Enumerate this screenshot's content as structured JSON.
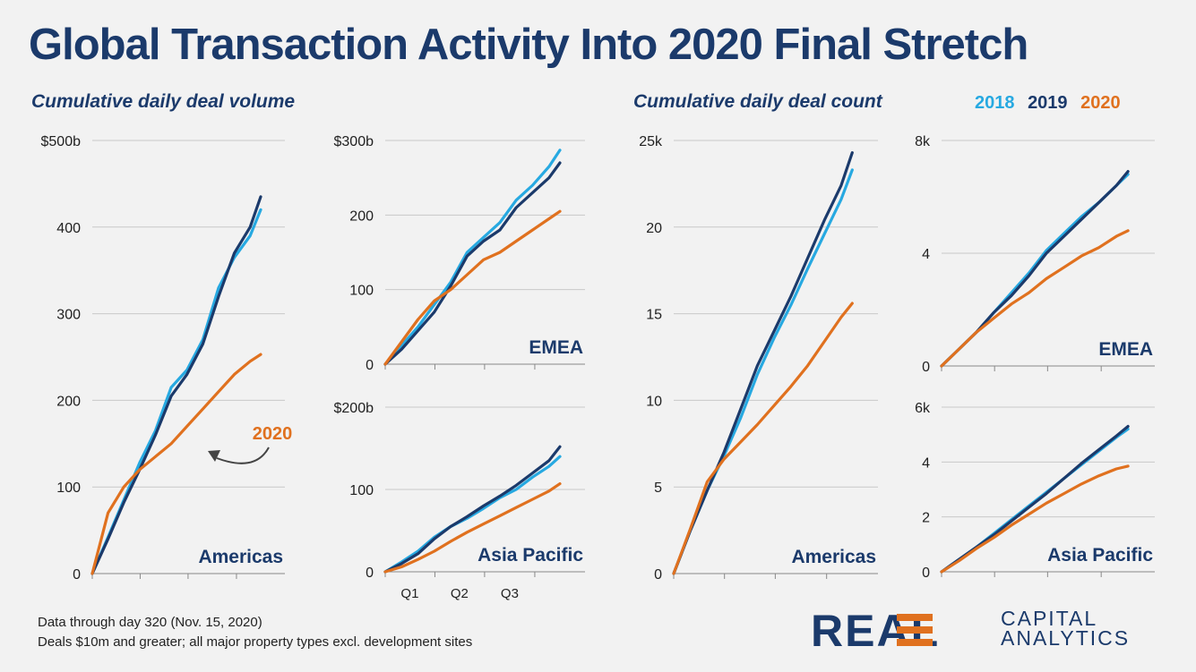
{
  "title": "Global Transaction Activity Into 2020 Final Stretch",
  "subtitle_left": "Cumulative daily deal volume",
  "subtitle_right": "Cumulative daily deal count",
  "legend": [
    {
      "name": "2018",
      "color": "#27a9e1"
    },
    {
      "name": "2019",
      "color": "#1b3a6b"
    },
    {
      "name": "2020",
      "color": "#e0711f"
    }
  ],
  "footnote_line1": "Data through day 320 (Nov. 15, 2020)",
  "footnote_line2": "Deals $10m and greater; all major property types excl. development sites",
  "logo": {
    "word": "REAL",
    "line1": "CAPITAL",
    "line2": "ANALYTICS"
  },
  "chart_data": [
    {
      "type": "line",
      "label": "Americas",
      "metric": "Cumulative daily deal volume",
      "ylim": [
        0,
        500
      ],
      "yticks": [
        "$500b",
        "400",
        "300",
        "200",
        "100",
        "0"
      ],
      "x": [
        0,
        30,
        60,
        90,
        120,
        150,
        180,
        210,
        240,
        270,
        300,
        320
      ],
      "annotation": "2020",
      "series": [
        {
          "name": "2018",
          "values": [
            0,
            42,
            85,
            128,
            165,
            215,
            235,
            270,
            330,
            365,
            390,
            420
          ]
        },
        {
          "name": "2019",
          "values": [
            0,
            40,
            82,
            120,
            160,
            205,
            230,
            265,
            320,
            370,
            400,
            435
          ]
        },
        {
          "name": "2020",
          "values": [
            0,
            70,
            100,
            120,
            135,
            150,
            170,
            190,
            210,
            230,
            245,
            253
          ]
        }
      ]
    },
    {
      "type": "line",
      "label": "EMEA",
      "metric": "Cumulative daily deal volume",
      "ylim": [
        0,
        300
      ],
      "yticks": [
        "$300b",
        "200",
        "100",
        "0"
      ],
      "x": [
        0,
        30,
        60,
        90,
        120,
        150,
        180,
        210,
        240,
        270,
        300,
        320
      ],
      "series": [
        {
          "name": "2018",
          "values": [
            0,
            25,
            50,
            80,
            110,
            150,
            170,
            190,
            220,
            240,
            265,
            287
          ]
        },
        {
          "name": "2019",
          "values": [
            0,
            20,
            45,
            70,
            105,
            145,
            165,
            180,
            210,
            230,
            250,
            270
          ]
        },
        {
          "name": "2020",
          "values": [
            0,
            30,
            60,
            85,
            100,
            120,
            140,
            150,
            165,
            180,
            195,
            205
          ]
        }
      ]
    },
    {
      "type": "line",
      "label": "Asia Pacific",
      "metric": "Cumulative daily deal volume",
      "ylim": [
        0,
        200
      ],
      "yticks": [
        "$200b",
        "100",
        "0"
      ],
      "xticklabels": [
        "Q1",
        "Q2",
        "Q3"
      ],
      "x": [
        0,
        30,
        60,
        90,
        120,
        150,
        180,
        210,
        240,
        270,
        300,
        320
      ],
      "series": [
        {
          "name": "2018",
          "values": [
            0,
            12,
            25,
            42,
            55,
            65,
            77,
            90,
            100,
            115,
            128,
            140
          ]
        },
        {
          "name": "2019",
          "values": [
            0,
            10,
            22,
            40,
            55,
            67,
            80,
            92,
            105,
            120,
            135,
            152
          ]
        },
        {
          "name": "2020",
          "values": [
            0,
            6,
            15,
            25,
            37,
            48,
            58,
            68,
            78,
            88,
            98,
            107
          ]
        }
      ]
    },
    {
      "type": "line",
      "label": "Americas",
      "metric": "Cumulative daily deal count",
      "ylim": [
        0,
        25
      ],
      "yticks": [
        "25k",
        "20",
        "15",
        "10",
        "5",
        "0"
      ],
      "x": [
        0,
        30,
        60,
        90,
        120,
        150,
        180,
        210,
        240,
        270,
        300,
        320
      ],
      "series": [
        {
          "name": "2018",
          "values": [
            0,
            2.5,
            4.8,
            6.8,
            9.0,
            11.5,
            13.6,
            15.5,
            17.6,
            19.6,
            21.6,
            23.3
          ]
        },
        {
          "name": "2019",
          "values": [
            0,
            2.5,
            4.8,
            7.0,
            9.5,
            12.0,
            14.0,
            16.0,
            18.2,
            20.4,
            22.4,
            24.3
          ]
        },
        {
          "name": "2020",
          "values": [
            0,
            2.6,
            5.3,
            6.6,
            7.6,
            8.6,
            9.7,
            10.8,
            12.0,
            13.4,
            14.8,
            15.6
          ]
        }
      ]
    },
    {
      "type": "line",
      "label": "EMEA",
      "metric": "Cumulative daily deal count",
      "ylim": [
        0,
        8
      ],
      "yticks": [
        "8k",
        "4",
        "0"
      ],
      "x": [
        0,
        30,
        60,
        90,
        120,
        150,
        180,
        210,
        240,
        270,
        300,
        320
      ],
      "series": [
        {
          "name": "2018",
          "values": [
            0,
            0.6,
            1.2,
            1.9,
            2.6,
            3.3,
            4.1,
            4.7,
            5.3,
            5.8,
            6.4,
            6.8
          ]
        },
        {
          "name": "2019",
          "values": [
            0,
            0.6,
            1.2,
            1.9,
            2.5,
            3.2,
            4.0,
            4.6,
            5.2,
            5.8,
            6.4,
            6.9
          ]
        },
        {
          "name": "2020",
          "values": [
            0,
            0.6,
            1.2,
            1.7,
            2.2,
            2.6,
            3.1,
            3.5,
            3.9,
            4.2,
            4.6,
            4.8
          ]
        }
      ]
    },
    {
      "type": "line",
      "label": "Asia Pacific",
      "metric": "Cumulative daily deal count",
      "ylim": [
        0,
        6
      ],
      "yticks": [
        "6k",
        "4",
        "2",
        "0"
      ],
      "x": [
        0,
        30,
        60,
        90,
        120,
        150,
        180,
        210,
        240,
        270,
        300,
        320
      ],
      "series": [
        {
          "name": "2018",
          "values": [
            0,
            0.45,
            0.9,
            1.4,
            1.9,
            2.4,
            2.9,
            3.4,
            3.9,
            4.4,
            4.9,
            5.2
          ]
        },
        {
          "name": "2019",
          "values": [
            0,
            0.45,
            0.9,
            1.35,
            1.85,
            2.35,
            2.85,
            3.4,
            3.95,
            4.45,
            4.95,
            5.3
          ]
        },
        {
          "name": "2020",
          "values": [
            0,
            0.4,
            0.85,
            1.25,
            1.7,
            2.1,
            2.5,
            2.85,
            3.2,
            3.5,
            3.75,
            3.85
          ]
        }
      ]
    }
  ]
}
